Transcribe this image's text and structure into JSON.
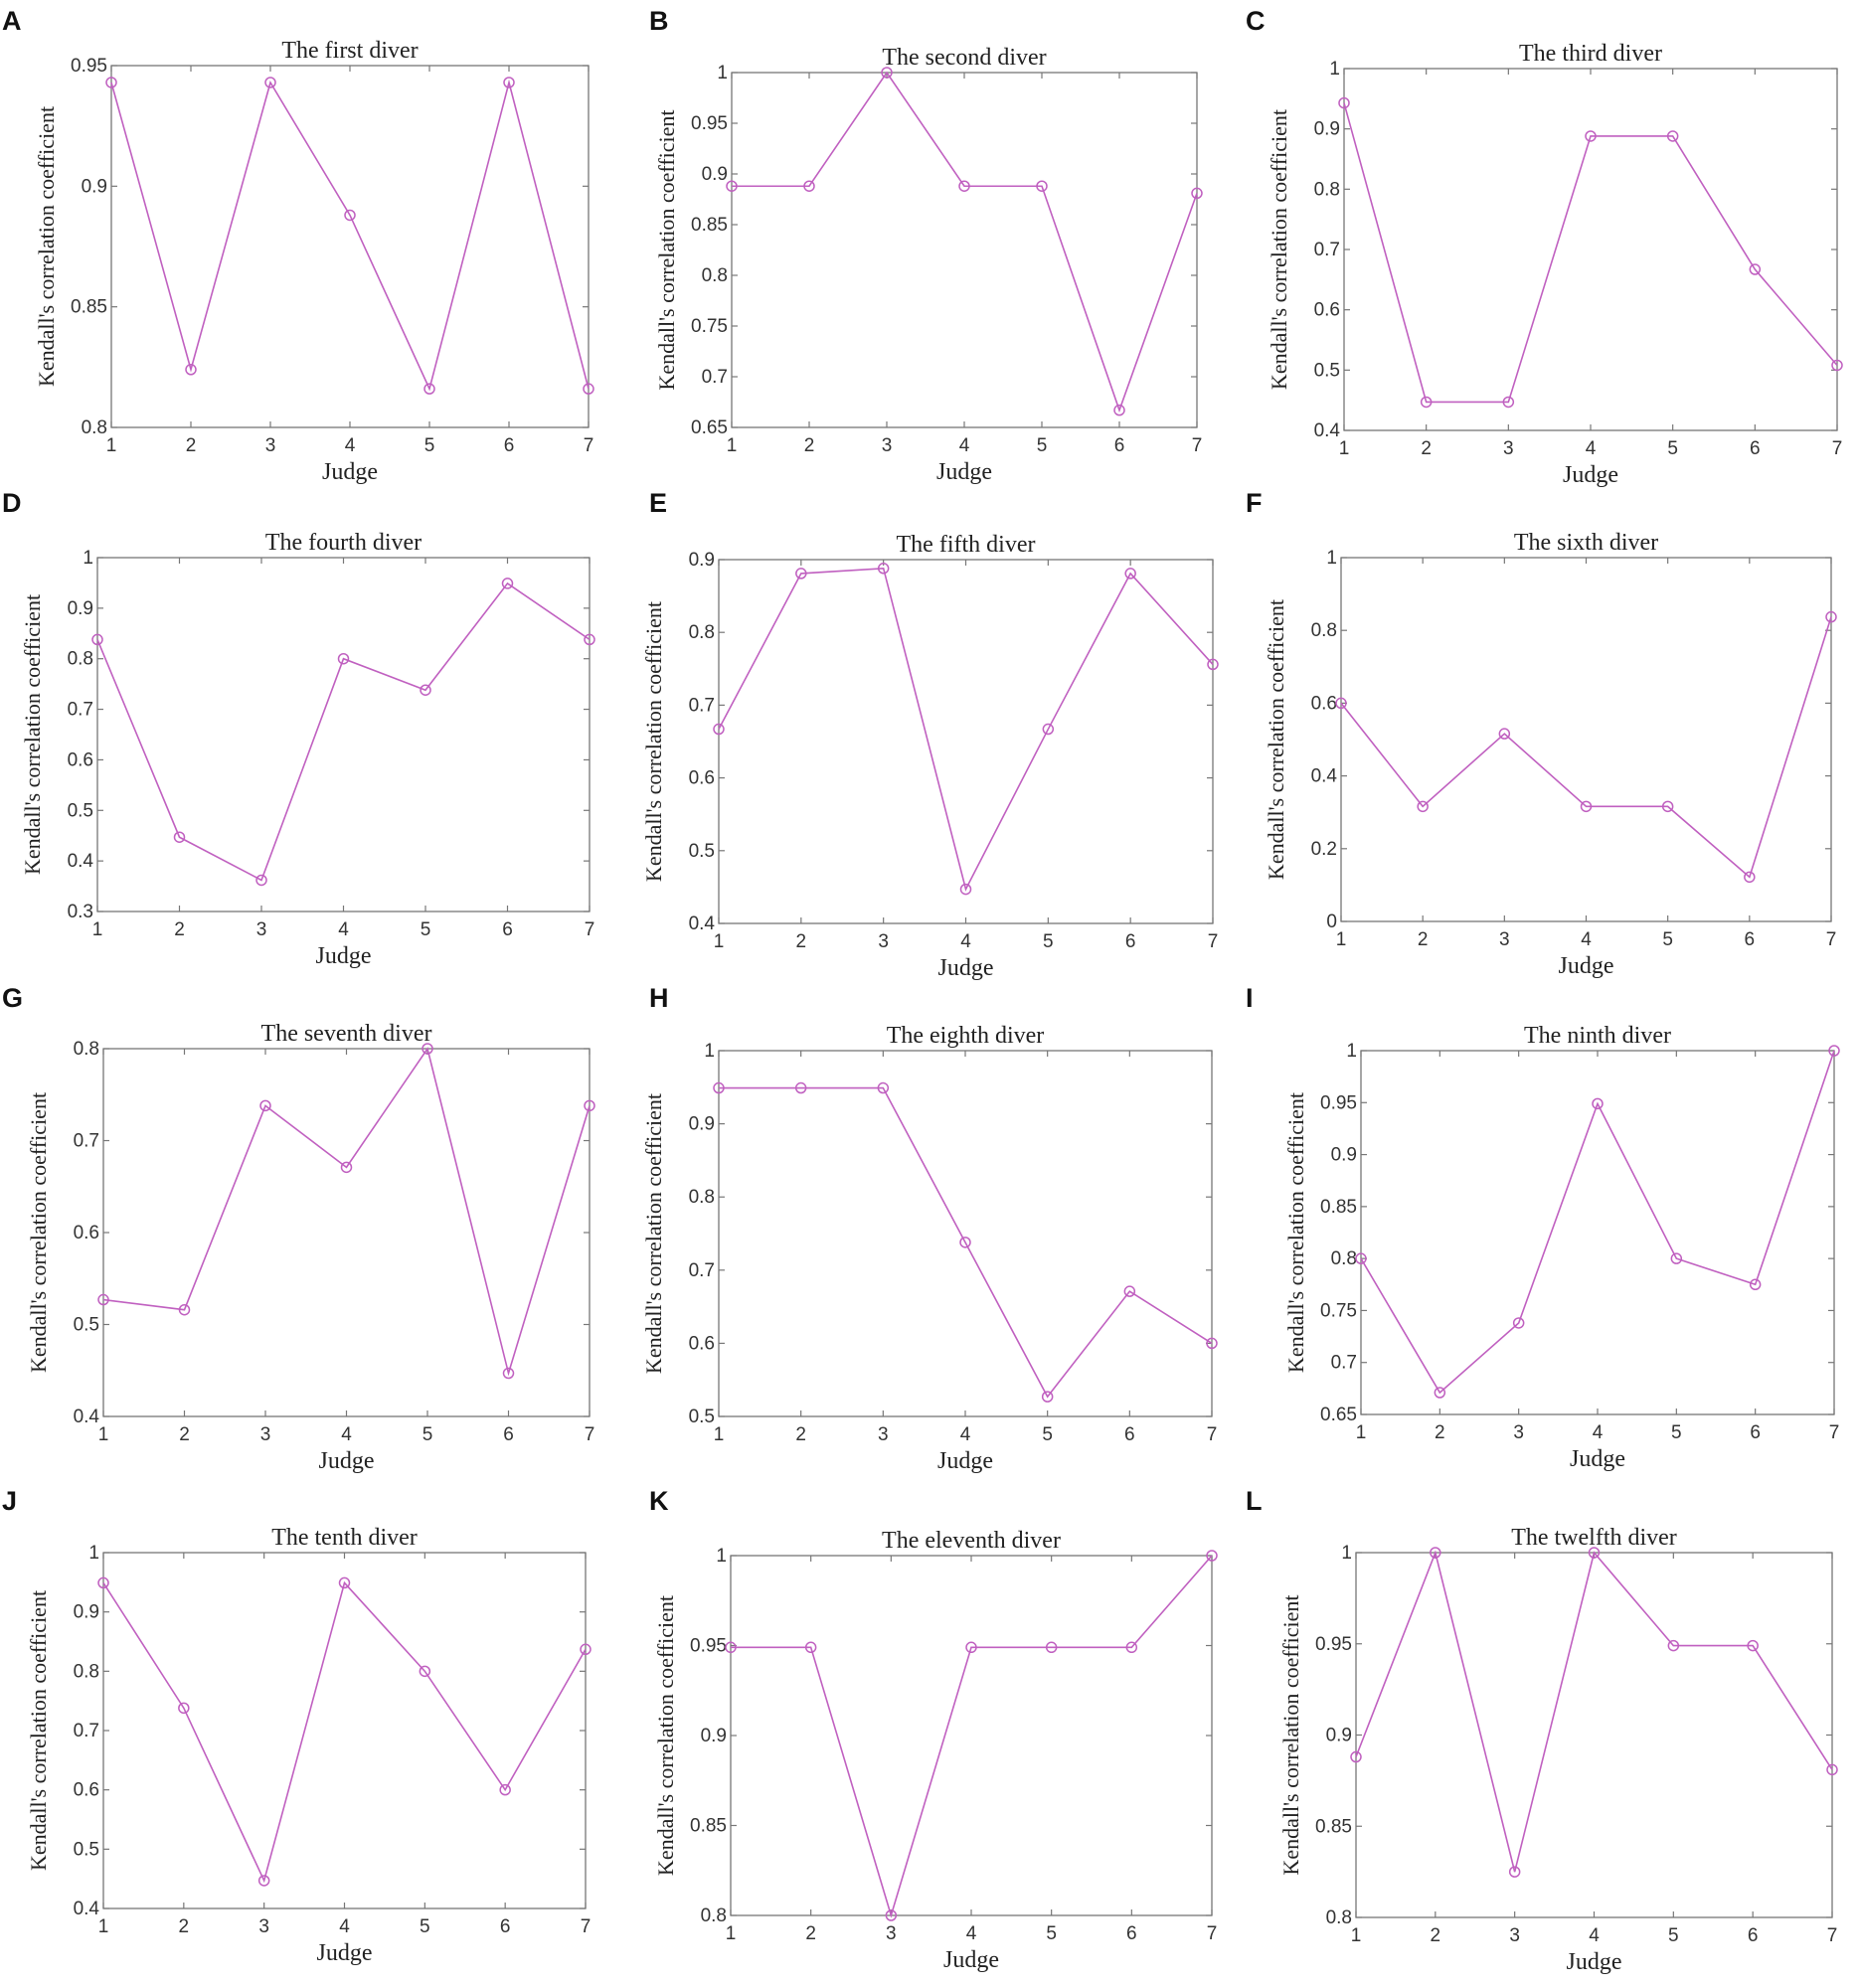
{
  "style": {
    "line_color": "#c060c0",
    "marker": "circle"
  },
  "chart_data": [
    {
      "letter": "A",
      "type": "line",
      "title": "The first diver",
      "xlabel": "Judge",
      "ylabel": "Kendall's correlation coefficient",
      "x": [
        1,
        2,
        3,
        4,
        5,
        6,
        7
      ],
      "y": [
        0.943,
        0.824,
        0.943,
        0.888,
        0.816,
        0.943,
        0.816
      ],
      "ylim": [
        0.8,
        0.95
      ],
      "xlim": [
        1,
        7
      ],
      "yticks": [
        0.8,
        0.85,
        0.9,
        0.95
      ],
      "ytick_labels": [
        "0.8",
        "0.85",
        "0.9",
        "0.95"
      ],
      "xticks": [
        1,
        2,
        3,
        4,
        5,
        6,
        7
      ],
      "xtick_labels": [
        "1",
        "2",
        "3",
        "4",
        "5",
        "6",
        "7"
      ]
    },
    {
      "letter": "B",
      "type": "line",
      "title": "The second diver",
      "xlabel": "Judge",
      "ylabel": "Kendall's correlation coefficient",
      "x": [
        1,
        2,
        3,
        4,
        5,
        6,
        7
      ],
      "y": [
        0.888,
        0.888,
        1.0,
        0.888,
        0.888,
        0.667,
        0.881
      ],
      "ylim": [
        0.65,
        1
      ],
      "xlim": [
        1,
        7
      ],
      "yticks": [
        0.65,
        0.7,
        0.75,
        0.8,
        0.85,
        0.9,
        0.95,
        1
      ],
      "ytick_labels": [
        "0.65",
        "0.7",
        "0.75",
        "0.8",
        "0.85",
        "0.9",
        "0.95",
        "1"
      ],
      "xticks": [
        1,
        2,
        3,
        4,
        5,
        6,
        7
      ],
      "xtick_labels": [
        "1",
        "2",
        "3",
        "4",
        "5",
        "6",
        "7"
      ]
    },
    {
      "letter": "C",
      "type": "line",
      "title": "The third diver",
      "xlabel": "Judge",
      "ylabel": "Kendall's correlation coefficient",
      "x": [
        1,
        2,
        3,
        4,
        5,
        6,
        7
      ],
      "y": [
        0.943,
        0.447,
        0.447,
        0.888,
        0.888,
        0.667,
        0.508
      ],
      "ylim": [
        0.4,
        1
      ],
      "xlim": [
        1,
        7
      ],
      "yticks": [
        0.4,
        0.5,
        0.6,
        0.7,
        0.8,
        0.9,
        1
      ],
      "ytick_labels": [
        "0.4",
        "0.5",
        "0.6",
        "0.7",
        "0.8",
        "0.9",
        "1"
      ],
      "xticks": [
        1,
        2,
        3,
        4,
        5,
        6,
        7
      ],
      "xtick_labels": [
        "1",
        "2",
        "3",
        "4",
        "5",
        "6",
        "7"
      ]
    },
    {
      "letter": "D",
      "type": "line",
      "title": "The fourth diver",
      "xlabel": "Judge",
      "ylabel": "Kendall's correlation coefficient",
      "x": [
        1,
        2,
        3,
        4,
        5,
        6,
        7
      ],
      "y": [
        0.838,
        0.447,
        0.362,
        0.8,
        0.738,
        0.949,
        0.838
      ],
      "ylim": [
        0.3,
        1
      ],
      "xlim": [
        1,
        7
      ],
      "yticks": [
        0.3,
        0.4,
        0.5,
        0.6,
        0.7,
        0.8,
        0.9,
        1
      ],
      "ytick_labels": [
        "0.3",
        "0.4",
        "0.5",
        "0.6",
        "0.7",
        "0.8",
        "0.9",
        "1"
      ],
      "xticks": [
        1,
        2,
        3,
        4,
        5,
        6,
        7
      ],
      "xtick_labels": [
        "1",
        "2",
        "3",
        "4",
        "5",
        "6",
        "7"
      ]
    },
    {
      "letter": "E",
      "type": "line",
      "title": "The fifth diver",
      "xlabel": "Judge",
      "ylabel": "Kendall's correlation coefficient",
      "x": [
        1,
        2,
        3,
        4,
        5,
        6,
        7
      ],
      "y": [
        0.667,
        0.881,
        0.888,
        0.447,
        0.667,
        0.881,
        0.756
      ],
      "ylim": [
        0.4,
        0.9
      ],
      "xlim": [
        1,
        7
      ],
      "yticks": [
        0.4,
        0.5,
        0.6,
        0.7,
        0.8,
        0.9
      ],
      "ytick_labels": [
        "0.4",
        "0.5",
        "0.6",
        "0.7",
        "0.8",
        "0.9"
      ],
      "xticks": [
        1,
        2,
        3,
        4,
        5,
        6,
        7
      ],
      "xtick_labels": [
        "1",
        "2",
        "3",
        "4",
        "5",
        "6",
        "7"
      ]
    },
    {
      "letter": "F",
      "type": "line",
      "title": "The sixth diver",
      "xlabel": "Judge",
      "ylabel": "Kendall's correlation coefficient",
      "x": [
        1,
        2,
        3,
        4,
        5,
        6,
        7
      ],
      "y": [
        0.6,
        0.316,
        0.516,
        0.316,
        0.316,
        0.122,
        0.837
      ],
      "ylim": [
        0,
        1
      ],
      "xlim": [
        1,
        7
      ],
      "yticks": [
        0,
        0.2,
        0.4,
        0.6,
        0.8,
        1
      ],
      "ytick_labels": [
        "0",
        "0.2",
        "0.4",
        "0.6",
        "0.8",
        "1"
      ],
      "xticks": [
        1,
        2,
        3,
        4,
        5,
        6,
        7
      ],
      "xtick_labels": [
        "1",
        "2",
        "3",
        "4",
        "5",
        "6",
        "7"
      ]
    },
    {
      "letter": "G",
      "type": "line",
      "title": "The seventh diver",
      "xlabel": "Judge",
      "ylabel": "Kendall's correlation coefficient",
      "x": [
        1,
        2,
        3,
        4,
        5,
        6,
        7
      ],
      "y": [
        0.527,
        0.516,
        0.738,
        0.671,
        0.8,
        0.447,
        0.738
      ],
      "ylim": [
        0.4,
        0.8
      ],
      "xlim": [
        1,
        7
      ],
      "yticks": [
        0.4,
        0.5,
        0.6,
        0.7,
        0.8
      ],
      "ytick_labels": [
        "0.4",
        "0.5",
        "0.6",
        "0.7",
        "0.8"
      ],
      "xticks": [
        1,
        2,
        3,
        4,
        5,
        6,
        7
      ],
      "xtick_labels": [
        "1",
        "2",
        "3",
        "4",
        "5",
        "6",
        "7"
      ]
    },
    {
      "letter": "H",
      "type": "line",
      "title": "The eighth diver",
      "xlabel": "Judge",
      "ylabel": "Kendall's correlation coefficient",
      "x": [
        1,
        2,
        3,
        4,
        5,
        6,
        7
      ],
      "y": [
        0.949,
        0.949,
        0.949,
        0.738,
        0.527,
        0.671,
        0.6
      ],
      "ylim": [
        0.5,
        1
      ],
      "xlim": [
        1,
        7
      ],
      "yticks": [
        0.5,
        0.6,
        0.7,
        0.8,
        0.9,
        1
      ],
      "ytick_labels": [
        "0.5",
        "0.6",
        "0.7",
        "0.8",
        "0.9",
        "1"
      ],
      "xticks": [
        1,
        2,
        3,
        4,
        5,
        6,
        7
      ],
      "xtick_labels": [
        "1",
        "2",
        "3",
        "4",
        "5",
        "6",
        "7"
      ]
    },
    {
      "letter": "I",
      "type": "line",
      "title": "The ninth diver",
      "xlabel": "Judge",
      "ylabel": "Kendall's correlation coefficient",
      "x": [
        1,
        2,
        3,
        4,
        5,
        6,
        7
      ],
      "y": [
        0.8,
        0.671,
        0.738,
        0.949,
        0.8,
        0.775,
        1.0
      ],
      "ylim": [
        0.65,
        1
      ],
      "xlim": [
        1,
        7
      ],
      "yticks": [
        0.65,
        0.7,
        0.75,
        0.8,
        0.85,
        0.9,
        0.95,
        1
      ],
      "ytick_labels": [
        "0.65",
        "0.7",
        "0.75",
        "0.8",
        "0.85",
        "0.9",
        "0.95",
        "1"
      ],
      "xticks": [
        1,
        2,
        3,
        4,
        5,
        6,
        7
      ],
      "xtick_labels": [
        "1",
        "2",
        "3",
        "4",
        "5",
        "6",
        "7"
      ]
    },
    {
      "letter": "J",
      "type": "line",
      "title": "The tenth diver",
      "xlabel": "Judge",
      "ylabel": "Kendall's correlation coefficient",
      "x": [
        1,
        2,
        3,
        4,
        5,
        6,
        7
      ],
      "y": [
        0.949,
        0.738,
        0.447,
        0.949,
        0.8,
        0.6,
        0.837
      ],
      "ylim": [
        0.4,
        1
      ],
      "xlim": [
        1,
        7
      ],
      "yticks": [
        0.4,
        0.5,
        0.6,
        0.7,
        0.8,
        0.9,
        1
      ],
      "ytick_labels": [
        "0.4",
        "0.5",
        "0.6",
        "0.7",
        "0.8",
        "0.9",
        "1"
      ],
      "xticks": [
        1,
        2,
        3,
        4,
        5,
        6,
        7
      ],
      "xtick_labels": [
        "1",
        "2",
        "3",
        "4",
        "5",
        "6",
        "7"
      ]
    },
    {
      "letter": "K",
      "type": "line",
      "title": "The eleventh diver",
      "xlabel": "Judge",
      "ylabel": "Kendall's correlation coefficient",
      "x": [
        1,
        2,
        3,
        4,
        5,
        6,
        7
      ],
      "y": [
        0.949,
        0.949,
        0.8,
        0.949,
        0.949,
        0.949,
        1.0
      ],
      "ylim": [
        0.8,
        1
      ],
      "xlim": [
        1,
        7
      ],
      "yticks": [
        0.8,
        0.85,
        0.9,
        0.95,
        1
      ],
      "ytick_labels": [
        "0.8",
        "0.85",
        "0.9",
        "0.95",
        "1"
      ],
      "xticks": [
        1,
        2,
        3,
        4,
        5,
        6,
        7
      ],
      "xtick_labels": [
        "1",
        "2",
        "3",
        "4",
        "5",
        "6",
        "7"
      ]
    },
    {
      "letter": "L",
      "type": "line",
      "title": "The twelfth diver",
      "xlabel": "Judge",
      "ylabel": "Kendall's correlation coefficient",
      "x": [
        1,
        2,
        3,
        4,
        5,
        6,
        7
      ],
      "y": [
        0.888,
        1.0,
        0.825,
        1.0,
        0.949,
        0.949,
        0.881
      ],
      "ylim": [
        0.8,
        1
      ],
      "xlim": [
        1,
        7
      ],
      "yticks": [
        0.8,
        0.85,
        0.9,
        0.95,
        1
      ],
      "ytick_labels": [
        "0.8",
        "0.85",
        "0.9",
        "0.95",
        "1"
      ],
      "xticks": [
        1,
        2,
        3,
        4,
        5,
        6,
        7
      ],
      "xtick_labels": [
        "1",
        "2",
        "3",
        "4",
        "5",
        "6",
        "7"
      ]
    }
  ]
}
